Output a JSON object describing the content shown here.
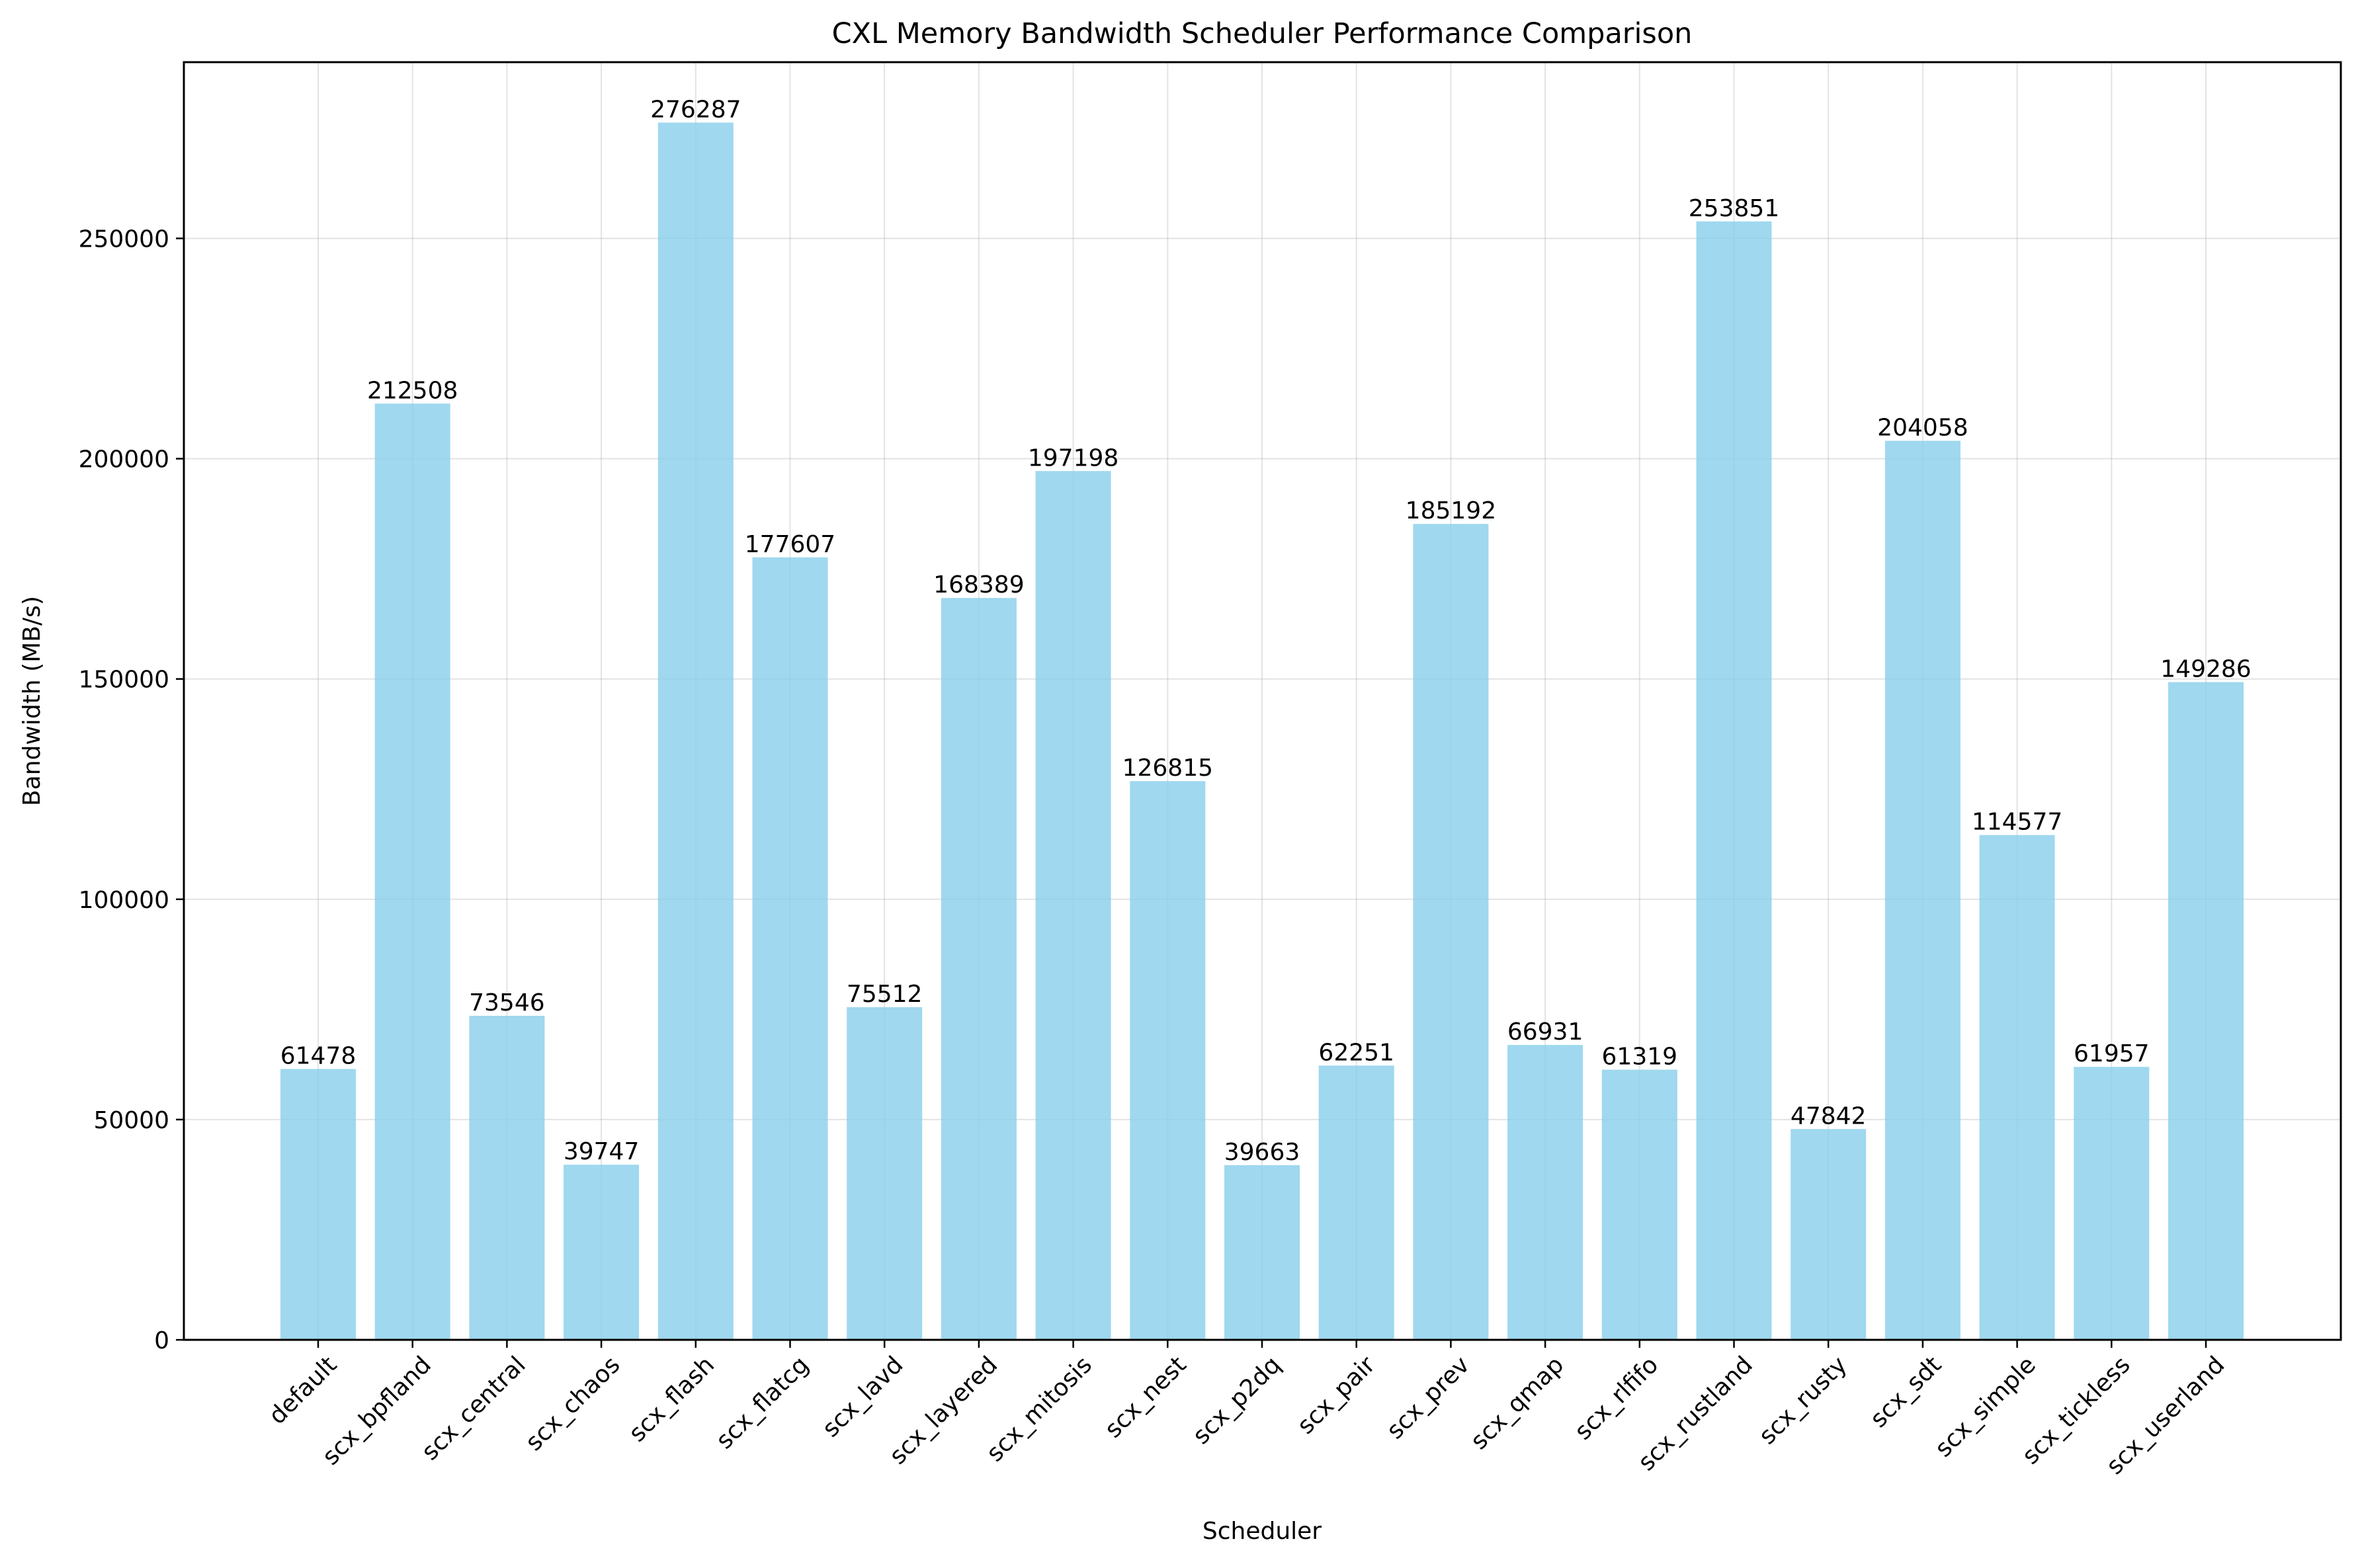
{
  "chart_data": {
    "type": "bar",
    "title": "CXL Memory Bandwidth Scheduler Performance Comparison",
    "xlabel": "Scheduler",
    "ylabel": "Bandwidth (MB/s)",
    "categories": [
      "default",
      "scx_bpfland",
      "scx_central",
      "scx_chaos",
      "scx_flash",
      "scx_flatcg",
      "scx_lavd",
      "scx_layered",
      "scx_mitosis",
      "scx_nest",
      "scx_p2dq",
      "scx_pair",
      "scx_prev",
      "scx_qmap",
      "scx_rlfifo",
      "scx_rustland",
      "scx_rusty",
      "scx_sdt",
      "scx_simple",
      "scx_tickless",
      "scx_userland"
    ],
    "values": [
      61478,
      212508,
      73546,
      39747,
      276287,
      177607,
      75512,
      168389,
      197198,
      126815,
      39663,
      62251,
      185192,
      66931,
      61319,
      253851,
      47842,
      204058,
      114577,
      61957,
      149286
    ],
    "data_labels": [
      "61478",
      "212508",
      "73546",
      "39747",
      "276287",
      "177607",
      "75512",
      "168389",
      "197198",
      "126815",
      "39663",
      "62251",
      "185192",
      "66931",
      "61319",
      "253851",
      "47842",
      "204058",
      "114577",
      "61957",
      "149286"
    ],
    "ylim": [
      0,
      290000
    ],
    "yticks": [
      0,
      50000,
      100000,
      150000,
      200000,
      250000
    ],
    "ytick_labels": [
      "0",
      "50000",
      "100000",
      "150000",
      "200000",
      "250000"
    ],
    "grid": true,
    "bar_color": "#87ceeb",
    "bar_opacity": 0.8
  }
}
